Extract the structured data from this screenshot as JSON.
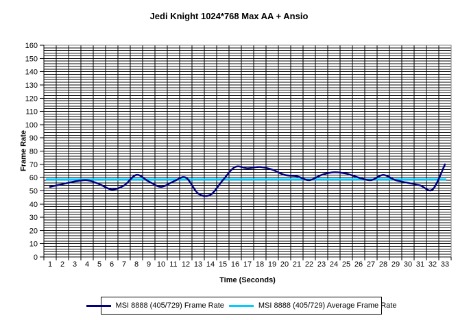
{
  "chart_data": {
    "type": "line",
    "title": "Jedi Knight 1024*768 Max AA + Ansio",
    "xlabel": "Time (Seconds)",
    "ylabel": "Frame Rate",
    "x": [
      1,
      2,
      3,
      4,
      5,
      6,
      7,
      8,
      9,
      10,
      11,
      12,
      13,
      14,
      15,
      16,
      17,
      18,
      19,
      20,
      21,
      22,
      23,
      24,
      25,
      26,
      27,
      28,
      29,
      30,
      31,
      32,
      33
    ],
    "series": [
      {
        "name": "MSI 8888 (405/729) Frame Rate",
        "color": "#000080",
        "values": [
          53,
          55,
          57,
          58,
          55,
          51,
          54,
          62,
          57,
          53,
          57,
          60,
          48,
          47,
          58,
          68,
          67,
          68,
          66,
          62,
          61,
          58,
          62,
          64,
          63,
          60,
          58,
          62,
          58,
          56,
          54,
          51,
          70
        ]
      },
      {
        "name": "MSI 8888 (405/729) Average Frame Rate",
        "color": "#00CCFF",
        "constant_value": 58.6
      }
    ],
    "ylim": [
      0,
      160
    ],
    "y_major_step": 10,
    "y_minor_step": 2,
    "grid": "both",
    "gridline_color": "#000000",
    "plot_border_color": "#808080",
    "legend_position": "bottom",
    "y_tick_labels": [
      "0",
      "10",
      "20",
      "30",
      "40",
      "50",
      "60",
      "70",
      "80",
      "90",
      "100",
      "110",
      "120",
      "130",
      "140",
      "150",
      "160"
    ]
  }
}
